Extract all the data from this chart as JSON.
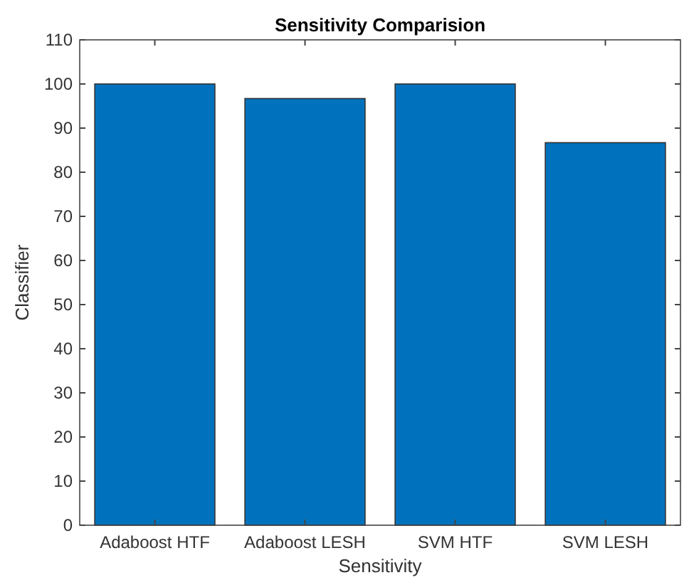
{
  "chart_data": {
    "type": "bar",
    "title": "Sensitivity Comparision",
    "xlabel": "Sensitivity",
    "ylabel": "Classifier",
    "categories": [
      "Adaboost HTF",
      "Adaboost LESH",
      "SVM HTF",
      "SVM LESH"
    ],
    "values": [
      100,
      96.7,
      100,
      86.7
    ],
    "color": "#0072bd",
    "ylim": [
      0,
      110
    ],
    "yticks": [
      0,
      10,
      20,
      30,
      40,
      50,
      60,
      70,
      80,
      90,
      100,
      110
    ],
    "grid": false
  }
}
